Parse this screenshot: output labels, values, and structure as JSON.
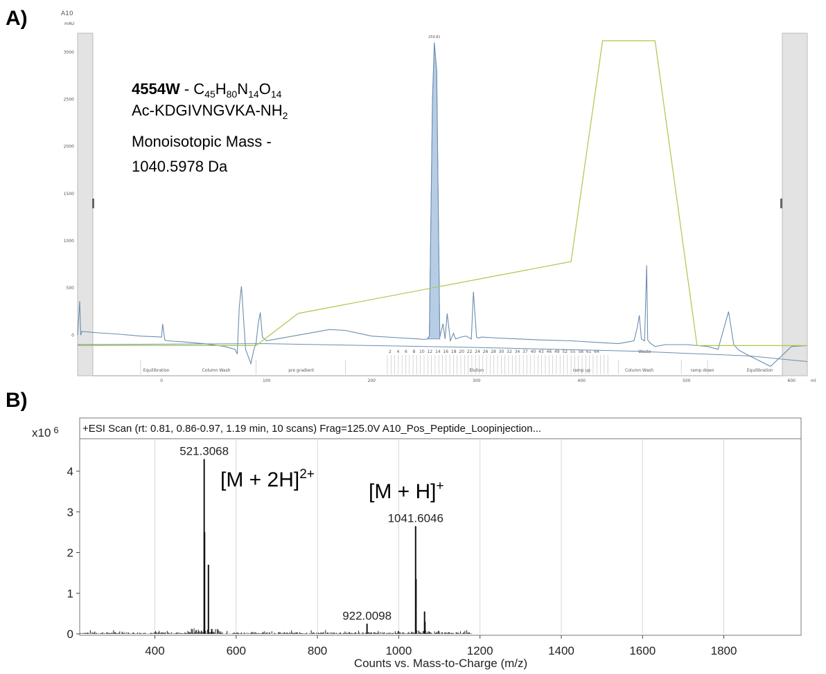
{
  "panels": {
    "a_label": "A)",
    "b_label": "B)"
  },
  "hplc": {
    "corner_label": "A10",
    "unit_label": "mAU",
    "x_unit_label": "ml",
    "compound": {
      "code": "4554W",
      "formula_parts": [
        {
          "t": " - C",
          "sub": false
        },
        {
          "t": "45",
          "sub": true
        },
        {
          "t": "H",
          "sub": false
        },
        {
          "t": "80",
          "sub": true
        },
        {
          "t": "N",
          "sub": false
        },
        {
          "t": "14",
          "sub": true
        },
        {
          "t": "O",
          "sub": false
        },
        {
          "t": "14",
          "sub": true
        }
      ],
      "sequence": "Ac-KDGIVNGVKA-NH",
      "sequence_sub": "2",
      "mass_line1": "Monoisotopic Mass -",
      "mass_line2": "1040.5978 Da"
    },
    "peak_label": "259.81",
    "segments": [
      "Equilibration",
      "Column Wash",
      "pre gradient",
      "Elution",
      "ramp up",
      "Column Wash",
      "ramp down",
      "Equilibration"
    ],
    "waste_label": "Waste",
    "fraction_numbers": [
      "2",
      "4",
      "6",
      "8",
      "10",
      "12",
      "14",
      "16",
      "18",
      "20",
      "22",
      "24",
      "26",
      "28",
      "30",
      "32",
      "34",
      "37",
      "40",
      "43",
      "46",
      "49",
      "52",
      "55",
      "58",
      "61",
      "64"
    ]
  },
  "ms": {
    "header": "+ESI Scan (rt: 0.81, 0.86-0.97, 1.19 min, 10 scans) Frag=125.0V A10_Pos_Peptide_Loopinjection...",
    "y_multiplier": "x10",
    "y_exponent": "6",
    "ion_2h_main": "[M + 2H]",
    "ion_2h_sup": "2+",
    "ion_h_main": "[M + H]",
    "ion_h_sup": "+"
  },
  "chart_data": [
    {
      "type": "line",
      "title": "",
      "xlabel": "",
      "ylabel": "mAU",
      "xlim": [
        -80,
        615
      ],
      "ylim": [
        -430,
        3200
      ],
      "x_ticks": [
        0,
        100,
        200,
        300,
        400,
        500,
        600
      ],
      "y_ticks": [
        0,
        500,
        1000,
        1500,
        2000,
        2500,
        3000
      ],
      "series": [
        {
          "color": "#6b8cae",
          "x": [
            -80,
            -78,
            -77,
            -76,
            -60,
            -40,
            -20,
            0,
            1,
            3,
            5,
            20,
            40,
            60,
            70,
            72,
            74,
            76,
            80,
            85,
            88,
            90,
            92,
            94,
            96,
            100,
            120,
            160,
            175,
            200,
            230,
            245,
            250,
            253,
            255,
            258,
            259.8,
            262,
            265,
            268,
            270,
            272,
            275,
            278,
            280,
            285,
            290,
            295,
            297,
            300,
            302,
            305,
            320,
            340,
            360,
            390,
            420,
            435,
            440,
            445,
            450,
            453,
            455,
            457,
            460,
            462,
            463,
            465,
            470,
            480,
            500,
            520,
            530,
            540,
            545,
            550,
            560,
            580,
            600,
            615
          ],
          "y": [
            0,
            360,
            0,
            40,
            25,
            10,
            -10,
            -20,
            120,
            -50,
            -60,
            -70,
            -90,
            -120,
            -150,
            -200,
            300,
            520,
            -150,
            -300,
            -150,
            -80,
            120,
            240,
            -20,
            -60,
            -20,
            60,
            50,
            -10,
            -30,
            -40,
            -45,
            -40,
            -10,
            2500,
            3100,
            2800,
            -20,
            120,
            -40,
            230,
            -60,
            20,
            -40,
            -20,
            -10,
            -40,
            460,
            -20,
            -30,
            -20,
            -30,
            -40,
            -50,
            -60,
            -80,
            -90,
            -80,
            -70,
            -60,
            80,
            210,
            -40,
            -60,
            740,
            -50,
            -80,
            -120,
            -100,
            -100,
            -120,
            -150,
            250,
            -100,
            -160,
            -220,
            -330,
            -120,
            -110
          ]
        },
        {
          "color": "#6b8cae",
          "x": [
            -80,
            100,
            300,
            450,
            560,
            615
          ],
          "y": [
            -100,
            -90,
            -130,
            -170,
            -220,
            -280
          ]
        },
        {
          "color": "#a6c94a",
          "x": [
            -80,
            90,
            130,
            390,
            420,
            470,
            510,
            615
          ],
          "y": [
            -110,
            -110,
            230,
            780,
            3120,
            3120,
            -110,
            -110
          ]
        }
      ]
    },
    {
      "type": "bar",
      "title": "",
      "xlabel": "Counts vs. Mass-to-Charge (m/z)",
      "ylabel": "",
      "xlim": [
        215,
        1990
      ],
      "ylim": [
        0,
        4.8
      ],
      "x_ticks": [
        400,
        600,
        800,
        1000,
        1200,
        1400,
        1600,
        1800
      ],
      "y_ticks": [
        0,
        1,
        2,
        3,
        4
      ],
      "peaks": [
        {
          "x": 521.3068,
          "y": 4.3,
          "label": "521.3068"
        },
        {
          "x": 522.3,
          "y": 2.5
        },
        {
          "x": 531.8,
          "y": 1.7
        },
        {
          "x": 540,
          "y": 0.12
        },
        {
          "x": 922.0098,
          "y": 0.25,
          "label": "922.0098"
        },
        {
          "x": 1041.6046,
          "y": 2.65,
          "label": "1041.6046"
        },
        {
          "x": 1042.6,
          "y": 1.35
        },
        {
          "x": 1063.6,
          "y": 0.55
        },
        {
          "x": 1064.6,
          "y": 0.3
        }
      ]
    }
  ]
}
